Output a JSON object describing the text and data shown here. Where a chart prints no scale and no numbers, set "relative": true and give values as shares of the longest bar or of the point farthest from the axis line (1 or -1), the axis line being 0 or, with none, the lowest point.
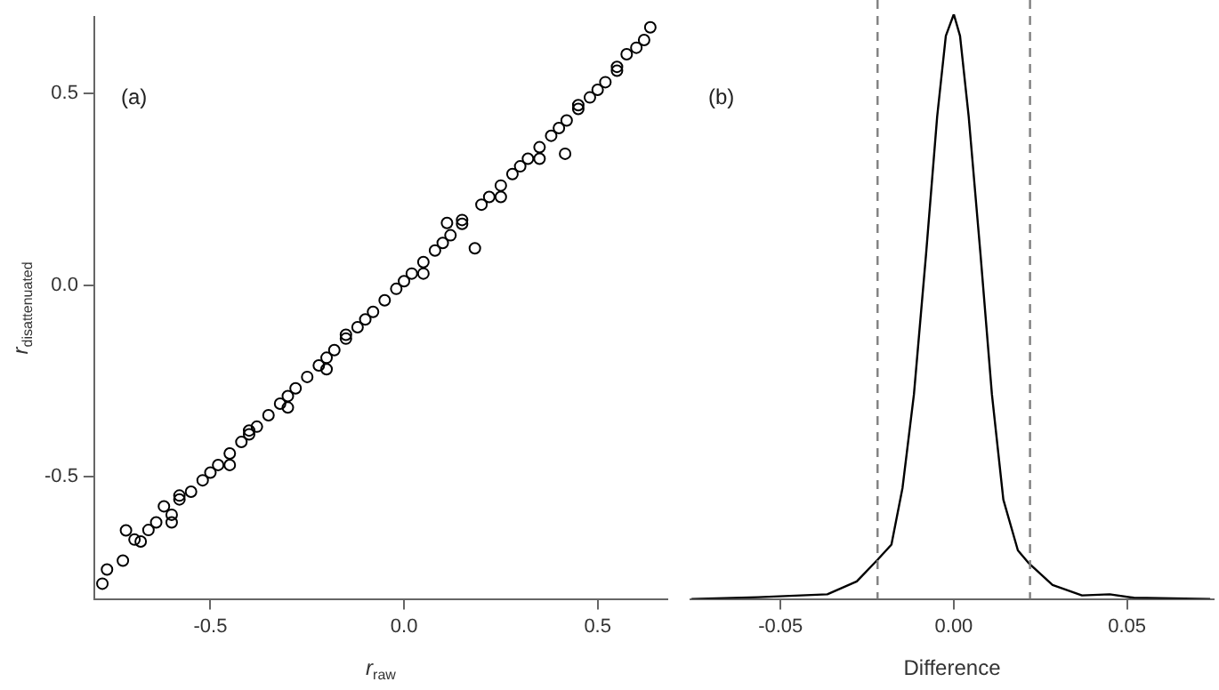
{
  "chart_data": [
    {
      "type": "scatter",
      "xlabel": "r$_{raw}$",
      "ylabel": "r$_{disattenuated}$",
      "annotations": [
        "(a)"
      ],
      "marker": "circle",
      "grid": false,
      "xlim": [
        -0.8,
        0.68
      ],
      "ylim": [
        -0.82,
        0.7
      ],
      "xticks": [
        -0.5,
        {
          "value": 0,
          "label": "0.0"
        },
        0.5
      ],
      "yticks": [
        -0.5,
        {
          "value": 0,
          "label": "0.0"
        },
        0.5
      ],
      "series": [
        {
          "color": "#000000",
          "x": [
            -0.779,
            -0.767,
            -0.726,
            -0.718,
            -0.696,
            -0.68,
            -0.66,
            -0.64,
            -0.62,
            -0.6,
            -0.58,
            -0.55,
            -0.52,
            -0.5,
            -0.48,
            -0.45,
            -0.42,
            -0.4,
            -0.38,
            -0.35,
            -0.32,
            -0.3,
            -0.28,
            -0.25,
            -0.22,
            -0.2,
            -0.18,
            -0.15,
            -0.12,
            -0.1,
            -0.08,
            -0.05,
            -0.02,
            0,
            0.02,
            0.05,
            0.08,
            0.1,
            0.111,
            0.12,
            0.15,
            0.183,
            0.2,
            0.22,
            0.25,
            0.28,
            0.3,
            0.32,
            0.35,
            0.38,
            0.4,
            0.416,
            0.42,
            0.45,
            0.48,
            0.5,
            0.52,
            0.55,
            0.575,
            0.6,
            0.62,
            0.636,
            -0.58,
            -0.45,
            -0.3,
            -0.15,
            0.05,
            0.25,
            0.45,
            -0.6,
            -0.4,
            -0.2,
            0.15,
            0.35,
            0.55
          ],
          "values": [
            -0.78,
            -0.743,
            -0.72,
            -0.641,
            -0.665,
            -0.67,
            -0.64,
            -0.62,
            -0.578,
            -0.6,
            -0.56,
            -0.54,
            -0.51,
            -0.49,
            -0.47,
            -0.44,
            -0.41,
            -0.39,
            -0.37,
            -0.34,
            -0.31,
            -0.29,
            -0.27,
            -0.24,
            -0.21,
            -0.19,
            -0.17,
            -0.14,
            -0.11,
            -0.09,
            -0.07,
            -0.04,
            -0.01,
            0.01,
            0.03,
            0.06,
            0.09,
            0.11,
            0.162,
            0.13,
            0.16,
            0.096,
            0.21,
            0.23,
            0.26,
            0.29,
            0.31,
            0.33,
            0.36,
            0.39,
            0.41,
            0.343,
            0.43,
            0.46,
            0.49,
            0.51,
            0.53,
            0.56,
            0.603,
            0.62,
            0.64,
            0.673,
            -0.55,
            -0.47,
            -0.32,
            -0.13,
            0.03,
            0.23,
            0.47,
            -0.62,
            -0.38,
            -0.22,
            0.17,
            0.33,
            0.57
          ]
        }
      ]
    },
    {
      "type": "line",
      "xlabel": "Difference",
      "annotations": [
        "(b)"
      ],
      "relative": true,
      "tick_labels": "x",
      "marker": "none",
      "grid": false,
      "xlim": [
        -0.076,
        0.075
      ],
      "xticks": [
        -0.05,
        {
          "value": 0,
          "label": "0.00"
        },
        0.05
      ],
      "ref_lines": [
        {
          "axis": "x",
          "value": -0.022,
          "color": "#808080",
          "line_style": "dashed"
        },
        {
          "axis": "x",
          "value": 0.022,
          "color": "#808080",
          "line_style": "dashed"
        }
      ],
      "series": [
        {
          "color": "#000000",
          "x": [
            -0.0757,
            -0.0565,
            -0.0365,
            -0.028,
            -0.022,
            -0.018,
            -0.0148,
            -0.0115,
            -0.008,
            -0.0048,
            -0.0023,
            0,
            0.0018,
            0.0043,
            0.0077,
            0.011,
            0.0143,
            0.0185,
            0.0215,
            0.0285,
            0.037,
            0.045,
            0.052,
            0.074
          ],
          "values": [
            0,
            0.003,
            0.008,
            0.03,
            0.067,
            0.093,
            0.19,
            0.35,
            0.59,
            0.825,
            0.963,
            1,
            0.963,
            0.825,
            0.59,
            0.35,
            0.17,
            0.083,
            0.062,
            0.024,
            0.006,
            0.008,
            0.002,
            0
          ]
        }
      ]
    }
  ]
}
